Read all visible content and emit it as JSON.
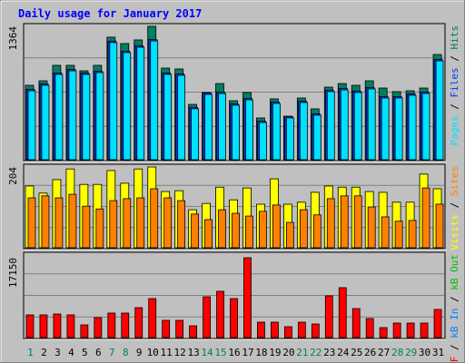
{
  "chart_data": {
    "type": "bar",
    "title": "Daily usage for January 2017",
    "categories": [
      "1",
      "2",
      "3",
      "4",
      "5",
      "6",
      "7",
      "8",
      "9",
      "10",
      "11",
      "12",
      "13",
      "14",
      "15",
      "16",
      "17",
      "18",
      "19",
      "20",
      "21",
      "22",
      "23",
      "24",
      "25",
      "26",
      "27",
      "28",
      "29",
      "30",
      "31"
    ],
    "weekend": [
      0,
      6,
      7,
      13,
      14,
      20,
      21,
      27,
      28
    ],
    "weekend_color": "#00805c",
    "legend_separator": " / ",
    "panels": [
      {
        "ylim": [
          0,
          1364
        ],
        "yticks": [
          1364
        ],
        "grid": true,
        "series": [
          {
            "name": "Pages",
            "color": "#00e0ff",
            "values": [
              705,
              761,
              872,
              909,
              872,
              891,
              1197,
              1095,
              1150,
              1215,
              872,
              863,
              520,
              668,
              677,
              557,
              612,
              380,
              575,
              427,
              585,
              455,
              696,
              714,
              687,
              724,
              631,
              631,
              659,
              677,
              1011
            ]
          },
          {
            "name": "Files",
            "color": "#0040ff",
            "values": [
              720,
              776,
              887,
              924,
              887,
              906,
              1212,
              1110,
              1165,
              1230,
              887,
              878,
              535,
              683,
              692,
              572,
              627,
              395,
              590,
              442,
              600,
              470,
              711,
              729,
              702,
              739,
              646,
              646,
              674,
              692,
              1026
            ]
          },
          {
            "name": "Hits",
            "color": "#00805c",
            "values": [
              761,
              807,
              965,
              965,
              909,
              965,
              1253,
              1188,
              1225,
              1364,
              937,
              928,
              566,
              687,
              779,
              603,
              687,
              427,
              622,
              445,
              631,
              520,
              742,
              779,
              761,
              807,
              733,
              696,
              705,
              733,
              1076
            ]
          }
        ]
      },
      {
        "ylim": [
          0,
          204
        ],
        "yticks": [
          204
        ],
        "grid": true,
        "series": [
          {
            "name": "Visits",
            "color": "#ffff00",
            "values": [
              156,
              138,
              172,
              199,
              160,
              160,
              195,
              163,
              199,
              204,
              142,
              144,
              96,
              112,
              153,
              121,
              151,
              110,
              174,
              110,
              115,
              140,
              156,
              153,
              153,
              142,
              140,
              115,
              115,
              186,
              149
            ]
          },
          {
            "name": "Sites",
            "color": "#ff8000",
            "values": [
              126,
              131,
              126,
              135,
              105,
              98,
              119,
              124,
              126,
              149,
              126,
              119,
              85,
              71,
              96,
              87,
              80,
              92,
              108,
              64,
              96,
              83,
              124,
              131,
              131,
              103,
              78,
              67,
              69,
              151,
              110
            ]
          }
        ]
      },
      {
        "ylim": [
          0,
          17150
        ],
        "yticks": [
          17150
        ],
        "grid": true,
        "series": [
          {
            "name": "kB F",
            "color": "#ff0000",
            "values": [
              4872,
              4872,
              5067,
              4872,
              2729,
              4288,
              5262,
              5262,
              6431,
              8380,
              3703,
              3703,
              2534,
              8770,
              9940,
              8380,
              17150,
              3313,
              3313,
              2339,
              3313,
              2923,
              8964,
              10719,
              6236,
              4093,
              2144,
              3118,
              3118,
              3118,
              6041
            ]
          }
        ],
        "extra_legend": [
          {
            "name": "kB In",
            "color": "#0080ff"
          },
          {
            "name": "kB Out",
            "color": "#00c000"
          }
        ]
      }
    ]
  }
}
